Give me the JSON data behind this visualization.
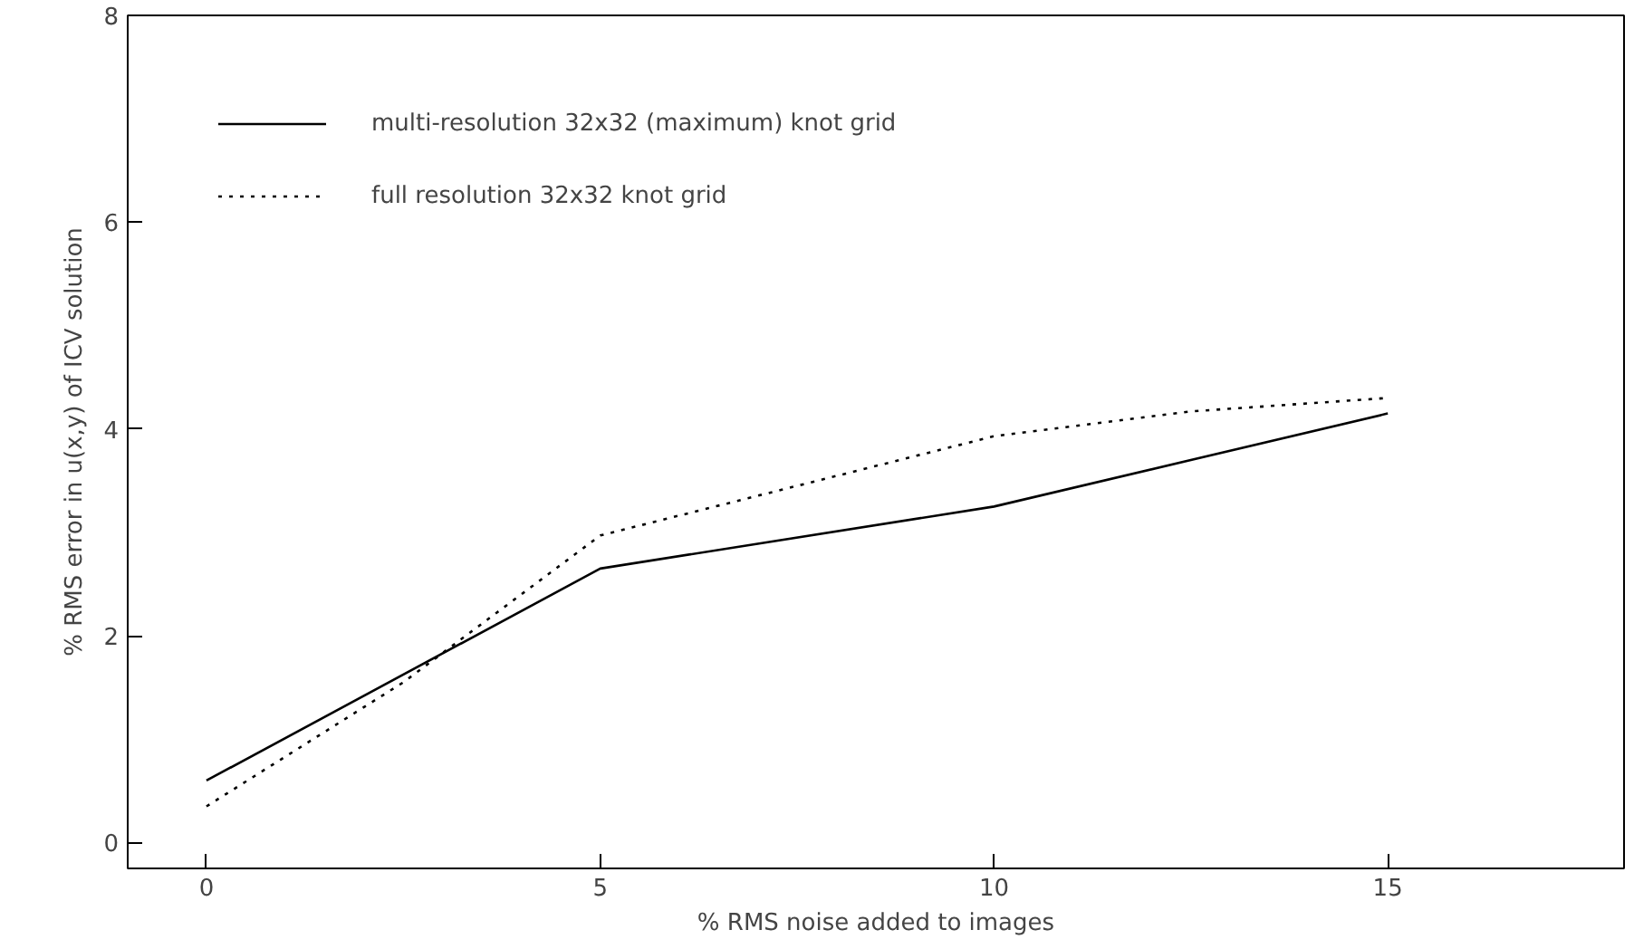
{
  "chart_data": {
    "type": "line",
    "xlabel": "% RMS noise added to images",
    "ylabel": "% RMS error in u(x,y) of ICV solution",
    "x": [
      0,
      5,
      10,
      15
    ],
    "xlim": [
      -1,
      18
    ],
    "ylim": [
      -0.25,
      8
    ],
    "xticks": [
      0,
      5,
      10,
      15
    ],
    "yticks": [
      0,
      2,
      4,
      6,
      8
    ],
    "grid": false,
    "legend": "top left",
    "series": [
      {
        "name": "multi-resolution 32x32 (maximum) knot grid",
        "color": "#000000",
        "line_style": "solid",
        "values": [
          0.6,
          2.65,
          3.25,
          4.15
        ]
      },
      {
        "name": "full resolution 32x32 knot grid",
        "color": "#000000",
        "line_style": "dotted",
        "x": [
          0,
          2.5,
          5,
          10,
          12.5,
          15
        ],
        "values": [
          0.35,
          1.55,
          2.97,
          3.93,
          4.17,
          4.3
        ]
      }
    ]
  }
}
